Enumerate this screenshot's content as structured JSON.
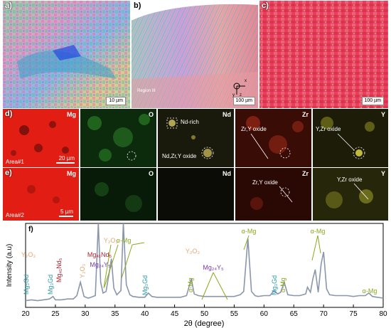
{
  "figure": {
    "panel_a": {
      "label": "a)",
      "scale": "10 µm"
    },
    "panel_b": {
      "label": "b)",
      "scale": "100 µm",
      "axes": [
        "x",
        "y",
        "z"
      ],
      "region_label": "Region III"
    },
    "panel_c": {
      "label": "c)",
      "scale": "100 µm"
    },
    "row_d": {
      "label": "d)",
      "area": "Area#1",
      "scale": "20 µm",
      "elements": [
        "Mg",
        "O",
        "Nd",
        "Zr",
        "Y"
      ],
      "annotations": {
        "nd_rich": "Nd-rich",
        "nd_zr_y_oxide": "Nd,Zr,Y oxide",
        "zr_y_oxide": "Zr,Y oxide",
        "y_zr_oxide": "Y,Zr oxide"
      }
    },
    "row_e": {
      "label": "e)",
      "area": "Area#2",
      "scale": "5 µm",
      "elements": [
        "Mg",
        "O",
        "Nd",
        "Zr",
        "Y"
      ],
      "annotations": {
        "zr_y_oxide": "Zr,Y oxide",
        "y_zr_oxide": "Y,Zr oxide"
      }
    },
    "colors": {
      "mg": "#e8231c",
      "o": "#1f8a22",
      "nd": "#1c1c10",
      "zr": "#b8331c",
      "y": "#c4c43a",
      "xrd_line": "#8a96ac"
    }
  },
  "chart_data": {
    "type": "line",
    "panel_label": "f)",
    "xlabel": "2θ (degree)",
    "ylabel": "Intensity (a.u)",
    "xlim": [
      20,
      80
    ],
    "xticks": [
      20,
      25,
      30,
      35,
      40,
      45,
      50,
      55,
      60,
      65,
      70,
      75,
      80
    ],
    "x": [
      20,
      21,
      22,
      23,
      24,
      24.6,
      25,
      26,
      27,
      28,
      28.6,
      29.2,
      29.8,
      30.5,
      31,
      31.7,
      32.2,
      32.6,
      33,
      33.5,
      34,
      34.4,
      34.8,
      35.3,
      36,
      36.4,
      36.9,
      37.5,
      38,
      39,
      40,
      40.6,
      41.2,
      42,
      43,
      44,
      45,
      46,
      47,
      47.8,
      48.3,
      49,
      50,
      51,
      52,
      53,
      54,
      55,
      56,
      56.6,
      57.3,
      57.9,
      58.5,
      59,
      60,
      61,
      61.7,
      62.3,
      62.8,
      63.4,
      64,
      65,
      66,
      67,
      67.3,
      67.8,
      68.2,
      68.6,
      69.1,
      69.6,
      70,
      70.5,
      71,
      72,
      73,
      74,
      75,
      76,
      77,
      77.6,
      78.2,
      79,
      80
    ],
    "y": [
      8,
      9,
      8,
      9,
      10,
      13,
      9,
      9,
      10,
      10,
      14,
      30,
      13,
      11,
      12,
      14,
      100,
      30,
      17,
      19,
      40,
      58,
      23,
      15,
      20,
      100,
      27,
      15,
      13,
      12,
      12,
      17,
      13,
      12,
      12,
      12,
      12,
      12,
      14,
      34,
      16,
      14,
      13,
      13,
      13,
      13,
      13,
      13,
      15,
      19,
      82,
      19,
      14,
      13,
      14,
      14,
      20,
      16,
      18,
      30,
      15,
      14,
      14,
      16,
      24,
      18,
      34,
      45,
      18,
      52,
      66,
      22,
      15,
      14,
      14,
      14,
      13,
      14,
      14,
      17,
      13,
      12,
      11
    ],
    "annotations": [
      {
        "text": "Y₂O₃",
        "color": "#e4a870",
        "x": 22
      },
      {
        "text": "Mg₃Gd",
        "color": "#2a9aa8",
        "x": 22.5
      },
      {
        "text": "Mg₃Gd",
        "color": "#2a9aa8",
        "x": 24.5
      },
      {
        "text": "Mg₄₁Nd₅",
        "color": "#b21e2a",
        "x": 26
      },
      {
        "text": "Y₂O₃",
        "color": "#e4a870",
        "x": 29
      },
      {
        "text": "Y₂O₃",
        "color": "#e4a870",
        "x": 32
      },
      {
        "text": "Mg₄₁Nd₅",
        "color": "#b21e2a",
        "x": 30
      },
      {
        "text": "Mg₂₄Y₅",
        "color": "#7a3aa8",
        "x": 30
      },
      {
        "text": "α-Mg",
        "color": "#8aa81c",
        "x": 36
      },
      {
        "text": "Mg₃Gd",
        "color": "#2a9aa8",
        "x": 40.6
      },
      {
        "text": "α-Mg",
        "color": "#8aa81c",
        "x": 47.8
      },
      {
        "text": "Y₂O₃",
        "color": "#e4a870",
        "x": 48.6
      },
      {
        "text": "Mg₂₄Y₅",
        "color": "#7a3aa8",
        "x": 52
      },
      {
        "text": "α-Mg",
        "color": "#8aa81c",
        "x": 57.3
      },
      {
        "text": "Mg₃Gd",
        "color": "#2a9aa8",
        "x": 61.6
      },
      {
        "text": "α-Mg",
        "color": "#8aa81c",
        "x": 63.2
      },
      {
        "text": "α-Mg",
        "color": "#8aa81c",
        "x": 68.3
      },
      {
        "text": "α-Mg",
        "color": "#8aa81c",
        "x": 78
      }
    ]
  }
}
